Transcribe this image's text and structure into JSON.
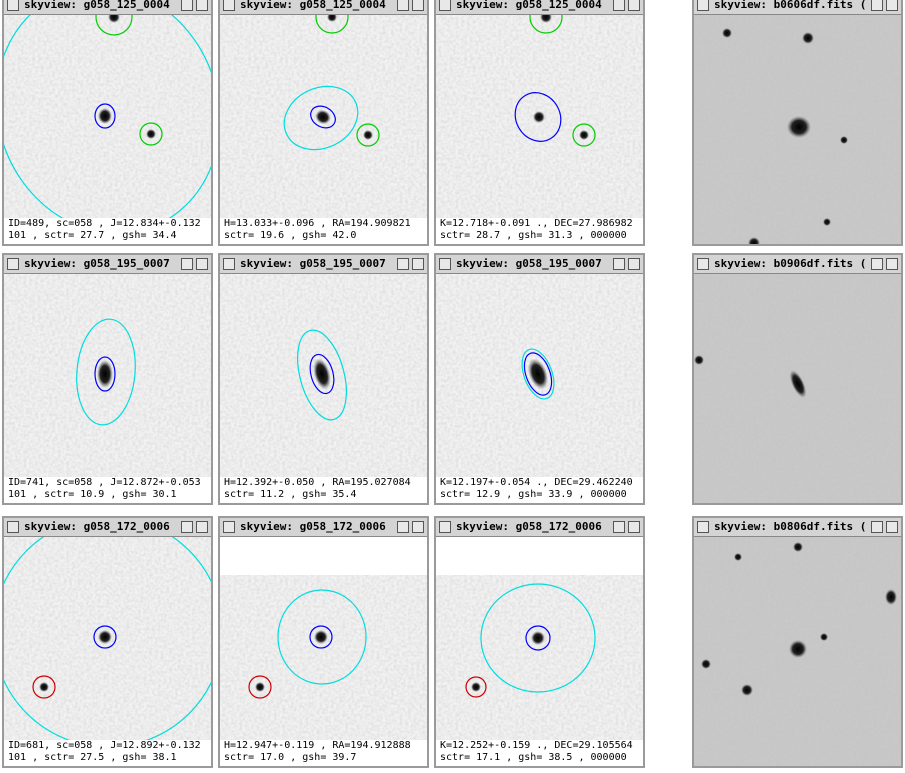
{
  "windows": [
    {
      "title": "skyview: g058_125_0004",
      "caption": [
        "ID=489, sc=058 , J=12.834+-0.132",
        "101 , sctr= 27.7 , gsh= 34.4"
      ]
    },
    {
      "title": "skyview: g058_125_0004",
      "caption": [
        "H=13.033+-0.096 , RA=194.909821",
        "sctr= 19.6 , gsh= 42.0"
      ]
    },
    {
      "title": "skyview: g058_125_0004",
      "caption": [
        "K=12.718+-0.091 ., DEC=27.986982",
        "sctr= 28.7 , gsh= 31.3 , 000000"
      ]
    },
    {
      "title": "skyview: b0606df.fits  (",
      "caption": []
    },
    {
      "title": "skyview: g058_195_0007",
      "caption": [
        "ID=741, sc=058 , J=12.872+-0.053",
        "101 , sctr= 10.9 , gsh= 30.1"
      ]
    },
    {
      "title": "skyview: g058_195_0007",
      "caption": [
        "H=12.392+-0.050 , RA=195.027084",
        "sctr= 11.2 , gsh= 35.4"
      ]
    },
    {
      "title": "skyview: g058_195_0007",
      "caption": [
        "K=12.197+-0.054 ., DEC=29.462240",
        "sctr= 12.9 , gsh= 33.9 , 000000"
      ]
    },
    {
      "title": "skyview: b0906df.fits  (",
      "caption": []
    },
    {
      "title": "skyview: g058_172_0006",
      "caption": [
        "ID=681, sc=058 , J=12.892+-0.132",
        "101 , sctr= 27.5 , gsh= 38.1"
      ]
    },
    {
      "title": "skyview: g058_172_0006",
      "caption": [
        "H=12.947+-0.119 , RA=194.912888",
        "sctr= 17.0 , gsh= 39.7"
      ]
    },
    {
      "title": "skyview: g058_172_0006",
      "caption": [
        "K=12.252+-0.159 ., DEC=29.105564",
        "sctr= 17.1 , gsh= 38.5 , 000000"
      ]
    },
    {
      "title": "skyview: b0806df.fits  (",
      "caption": []
    }
  ]
}
